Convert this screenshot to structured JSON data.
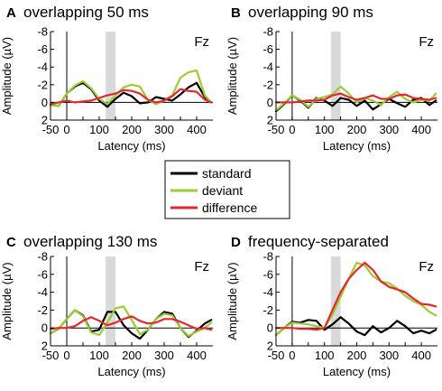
{
  "chart_data": [
    {
      "type": "line",
      "letter": "A",
      "title": "overlapping 50 ms",
      "channel": "Fz",
      "xlabel": "Latency (ms)",
      "ylabel": "Amplitude (µV)",
      "xlim": [
        -50,
        450
      ],
      "ylim": [
        -8,
        2
      ],
      "y_inverted": true,
      "xticks": [
        -50,
        0,
        50,
        100,
        150,
        200,
        250,
        300,
        350,
        400
      ],
      "yticks": [
        -8,
        -6,
        -4,
        -2,
        0,
        2
      ],
      "shaded_window": [
        120,
        150
      ],
      "series": [
        {
          "name": "standard",
          "color": "#000000",
          "x": [
            -50,
            -25,
            0,
            25,
            50,
            75,
            100,
            125,
            150,
            175,
            200,
            225,
            250,
            275,
            300,
            325,
            350,
            375,
            400,
            425,
            445
          ],
          "y": [
            0.3,
            0.4,
            -1.0,
            -1.8,
            -2.2,
            -1.5,
            -0.2,
            0.5,
            -0.4,
            -1.1,
            -0.7,
            0.1,
            0.0,
            -0.6,
            -0.4,
            -0.2,
            -0.9,
            -1.7,
            -2.2,
            -0.6,
            0.0
          ]
        },
        {
          "name": "deviant",
          "color": "#9acd32",
          "x": [
            -50,
            -25,
            0,
            25,
            50,
            75,
            100,
            125,
            150,
            175,
            200,
            225,
            250,
            275,
            300,
            325,
            350,
            375,
            400,
            425,
            445
          ],
          "y": [
            0.3,
            0.4,
            -1.0,
            -1.9,
            -2.4,
            -1.6,
            -0.4,
            0.2,
            -0.8,
            -1.7,
            -2.0,
            -1.8,
            -0.3,
            0.2,
            -0.2,
            -0.8,
            -2.8,
            -3.4,
            -3.6,
            -0.8,
            0.0
          ]
        },
        {
          "name": "difference",
          "color": "#e8262d",
          "x": [
            -50,
            -25,
            0,
            25,
            50,
            75,
            100,
            125,
            150,
            175,
            200,
            225,
            250,
            275,
            300,
            325,
            350,
            375,
            400,
            425,
            445
          ],
          "y": [
            0.2,
            0.0,
            -0.2,
            0.0,
            -0.1,
            -0.2,
            -0.5,
            -0.8,
            -1.0,
            -1.4,
            -1.3,
            -1.0,
            -0.3,
            0.0,
            -0.2,
            -0.7,
            -1.5,
            -1.3,
            -1.2,
            -0.3,
            0.0
          ]
        }
      ]
    },
    {
      "type": "line",
      "letter": "B",
      "title": "overlapping 90 ms",
      "channel": "Fz",
      "xlabel": "Latency (ms)",
      "ylabel": "Amplitude (µV)",
      "xlim": [
        -50,
        450
      ],
      "ylim": [
        -8,
        2
      ],
      "y_inverted": true,
      "xticks": [
        -50,
        0,
        50,
        100,
        150,
        200,
        250,
        300,
        350,
        400
      ],
      "yticks": [
        -8,
        -6,
        -4,
        -2,
        0,
        2
      ],
      "shaded_window": [
        120,
        150
      ],
      "series": [
        {
          "name": "standard",
          "color": "#000000",
          "x": [
            -50,
            -25,
            0,
            25,
            50,
            75,
            100,
            125,
            150,
            175,
            200,
            225,
            250,
            275,
            300,
            325,
            350,
            375,
            400,
            425,
            445
          ],
          "y": [
            1.0,
            0.2,
            -0.8,
            -0.2,
            0.6,
            -0.5,
            -0.2,
            0.4,
            -0.5,
            -0.3,
            0.4,
            -0.2,
            0.8,
            0.2,
            -0.4,
            0.1,
            0.5,
            -0.3,
            -0.5,
            0.3,
            -0.2
          ]
        },
        {
          "name": "deviant",
          "color": "#9acd32",
          "x": [
            -50,
            -25,
            0,
            25,
            50,
            75,
            100,
            125,
            150,
            175,
            200,
            225,
            250,
            275,
            300,
            325,
            350,
            375,
            400,
            425,
            445
          ],
          "y": [
            0.9,
            0.1,
            -0.8,
            -0.3,
            0.5,
            -0.4,
            -0.6,
            -0.9,
            -1.8,
            -1.0,
            0.0,
            -0.5,
            -0.2,
            0.3,
            -0.6,
            -1.2,
            -0.4,
            0.0,
            -0.3,
            -0.2,
            -1.0
          ]
        },
        {
          "name": "difference",
          "color": "#e8262d",
          "x": [
            -50,
            -25,
            0,
            25,
            50,
            75,
            100,
            125,
            150,
            175,
            200,
            225,
            250,
            275,
            300,
            325,
            350,
            375,
            400,
            425,
            445
          ],
          "y": [
            0.0,
            0.0,
            0.0,
            -0.1,
            -0.2,
            -0.2,
            -0.3,
            -0.8,
            -1.0,
            -0.6,
            -0.3,
            -0.5,
            -0.8,
            -0.4,
            -0.4,
            -0.8,
            -0.9,
            -0.5,
            -0.4,
            -0.3,
            -0.5
          ]
        }
      ]
    },
    {
      "type": "line",
      "letter": "C",
      "title": "overlapping 130 ms",
      "channel": "Fz",
      "xlabel": "Latency (ms)",
      "ylabel": "Amplitude (µV)",
      "xlim": [
        -50,
        450
      ],
      "ylim": [
        -8,
        2
      ],
      "y_inverted": true,
      "xticks": [
        -50,
        0,
        50,
        100,
        150,
        200,
        250,
        300,
        350,
        400
      ],
      "yticks": [
        -8,
        -6,
        -4,
        -2,
        0,
        2
      ],
      "shaded_window": [
        120,
        150
      ],
      "series": [
        {
          "name": "standard",
          "color": "#000000",
          "x": [
            -50,
            -25,
            0,
            25,
            50,
            75,
            100,
            125,
            150,
            175,
            200,
            225,
            250,
            275,
            300,
            325,
            350,
            375,
            400,
            425,
            445
          ],
          "y": [
            0.6,
            0.1,
            -1.0,
            -2.0,
            -1.4,
            0.4,
            0.2,
            -1.8,
            -1.8,
            -0.3,
            0.6,
            1.2,
            0.2,
            -1.0,
            -1.8,
            -1.6,
            0.0,
            1.0,
            0.3,
            -0.5,
            -0.9
          ]
        },
        {
          "name": "deviant",
          "color": "#9acd32",
          "x": [
            -50,
            -25,
            0,
            25,
            50,
            75,
            100,
            125,
            150,
            175,
            200,
            225,
            250,
            275,
            300,
            325,
            350,
            375,
            400,
            425,
            445
          ],
          "y": [
            0.6,
            0.1,
            -1.0,
            -2.0,
            -1.3,
            0.5,
            0.8,
            -0.6,
            -2.2,
            -2.4,
            -0.9,
            0.7,
            0.2,
            -1.0,
            -1.6,
            -1.4,
            0.0,
            0.9,
            0.4,
            0.0,
            -0.6
          ]
        },
        {
          "name": "difference",
          "color": "#e8262d",
          "x": [
            -50,
            -25,
            0,
            25,
            50,
            75,
            100,
            125,
            150,
            175,
            200,
            225,
            250,
            275,
            300,
            325,
            350,
            375,
            400,
            425,
            445
          ],
          "y": [
            0.1,
            0.0,
            0.0,
            -0.2,
            -0.8,
            -1.2,
            -0.8,
            -0.3,
            -0.6,
            -1.0,
            -1.3,
            -0.8,
            -0.5,
            -0.6,
            -1.0,
            -1.0,
            -0.7,
            -0.3,
            0.1,
            0.0,
            0.2
          ]
        }
      ]
    },
    {
      "type": "line",
      "letter": "D",
      "title": "frequency-separated",
      "channel": "Fz",
      "xlabel": "Latency (ms)",
      "ylabel": "Amplitude (µV)",
      "xlim": [
        -50,
        450
      ],
      "ylim": [
        -8,
        2
      ],
      "y_inverted": true,
      "xticks": [
        -50,
        0,
        50,
        100,
        150,
        200,
        250,
        300,
        350,
        400
      ],
      "yticks": [
        -8,
        -6,
        -4,
        -2,
        0,
        2
      ],
      "shaded_window": [
        120,
        150
      ],
      "series": [
        {
          "name": "standard",
          "color": "#000000",
          "x": [
            -50,
            -25,
            0,
            25,
            50,
            75,
            100,
            125,
            150,
            175,
            200,
            225,
            250,
            275,
            300,
            325,
            350,
            375,
            400,
            425,
            445
          ],
          "y": [
            0.8,
            0.0,
            -0.7,
            -0.6,
            -0.9,
            -0.8,
            0.2,
            -0.4,
            -1.2,
            -0.5,
            0.4,
            0.8,
            -0.2,
            0.5,
            0.0,
            -0.8,
            -0.2,
            0.6,
            0.3,
            0.6,
            0.2
          ]
        },
        {
          "name": "deviant",
          "color": "#9acd32",
          "x": [
            -50,
            -25,
            0,
            25,
            50,
            75,
            100,
            125,
            150,
            175,
            200,
            225,
            250,
            275,
            300,
            325,
            350,
            375,
            400,
            425,
            445
          ],
          "y": [
            0.8,
            0.0,
            -0.6,
            -0.5,
            -0.4,
            -0.2,
            0.0,
            -1.5,
            -3.5,
            -5.5,
            -7.3,
            -7.0,
            -5.8,
            -5.2,
            -5.0,
            -4.4,
            -3.6,
            -3.0,
            -2.6,
            -1.8,
            -1.4
          ]
        },
        {
          "name": "difference",
          "color": "#e8262d",
          "x": [
            -50,
            -25,
            0,
            25,
            50,
            75,
            100,
            125,
            150,
            175,
            200,
            225,
            250,
            275,
            300,
            325,
            350,
            375,
            400,
            425,
            445
          ],
          "y": [
            0.0,
            0.0,
            0.0,
            0.1,
            0.1,
            0.2,
            0.0,
            -2.0,
            -4.0,
            -5.5,
            -6.5,
            -7.3,
            -6.5,
            -5.2,
            -4.6,
            -4.3,
            -4.0,
            -3.3,
            -2.7,
            -2.6,
            -2.4
          ]
        }
      ]
    }
  ],
  "legend": {
    "entries": [
      {
        "label": "standard",
        "color": "#000000"
      },
      {
        "label": "deviant",
        "color": "#9acd32"
      },
      {
        "label": "difference",
        "color": "#e8262d"
      }
    ]
  },
  "shade_color": "#d9d9d9"
}
